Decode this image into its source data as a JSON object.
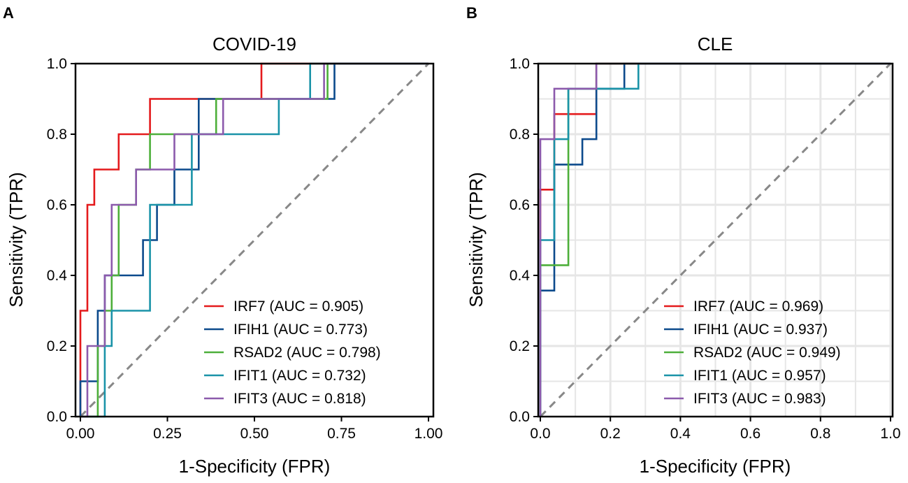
{
  "colors": {
    "IRF7": "#e41a1c",
    "IFIH1": "#0c4a8c",
    "RSAD2": "#4daf3a",
    "IFIT1": "#1a93a8",
    "IFIT3": "#8c5aac",
    "diagonal": "#888888",
    "grid": "#e6e6e6"
  },
  "chart_data": [
    {
      "panel": "A",
      "type": "line",
      "title": "COVID-19",
      "xlabel": "1-Specificity (FPR)",
      "ylabel": "Sensitivity (TPR)",
      "xlim": [
        0,
        1
      ],
      "ylim": [
        0,
        1
      ],
      "xticks": [
        0,
        0.25,
        0.5,
        0.75,
        1.0
      ],
      "xtick_labels": [
        "0.00",
        "0.25",
        "0.50",
        "0.75",
        "1.00"
      ],
      "yticks": [
        0,
        0.2,
        0.4,
        0.6,
        0.8,
        1.0
      ],
      "ytick_labels": [
        "0.0",
        "0.2",
        "0.4",
        "0.6",
        "0.8",
        "1.0"
      ],
      "grid": false,
      "legend_position": "bottom-right",
      "series": [
        {
          "name": "IRF7",
          "label": "IRF7 (AUC = 0.905)",
          "x": [
            0,
            0,
            0.02,
            0.02,
            0.04,
            0.04,
            0.06,
            0.06,
            0.11,
            0.11,
            0.2,
            0.2,
            0.52,
            0.52,
            1.0
          ],
          "y": [
            0,
            0.3,
            0.3,
            0.6,
            0.6,
            0.7,
            0.7,
            0.7,
            0.7,
            0.8,
            0.8,
            0.9,
            0.9,
            1.0,
            1.0
          ]
        },
        {
          "name": "IFIH1",
          "label": "IFIH1 (AUC = 0.773)",
          "x": [
            0,
            0,
            0.05,
            0.05,
            0.07,
            0.07,
            0.09,
            0.09,
            0.18,
            0.18,
            0.22,
            0.22,
            0.27,
            0.27,
            0.34,
            0.34,
            0.41,
            0.41,
            0.68,
            0.68,
            0.73,
            0.73,
            1.0
          ],
          "y": [
            0,
            0.1,
            0.1,
            0.3,
            0.3,
            0.4,
            0.4,
            0.4,
            0.4,
            0.5,
            0.5,
            0.6,
            0.6,
            0.7,
            0.7,
            0.9,
            0.9,
            0.9,
            0.9,
            0.9,
            0.9,
            1.0,
            1.0
          ]
        },
        {
          "name": "RSAD2",
          "label": "RSAD2 (AUC = 0.798)",
          "x": [
            0,
            0.05,
            0.05,
            0.07,
            0.07,
            0.09,
            0.09,
            0.11,
            0.11,
            0.16,
            0.16,
            0.2,
            0.2,
            0.39,
            0.39,
            0.71,
            0.71,
            1.0
          ],
          "y": [
            0,
            0,
            0.2,
            0.2,
            0.3,
            0.3,
            0.4,
            0.4,
            0.6,
            0.6,
            0.7,
            0.7,
            0.8,
            0.8,
            0.9,
            0.9,
            1.0,
            1.0
          ]
        },
        {
          "name": "IFIT1",
          "label": "IFIT1 (AUC = 0.732)",
          "x": [
            0,
            0.07,
            0.07,
            0.09,
            0.09,
            0.2,
            0.2,
            0.3,
            0.3,
            0.32,
            0.32,
            0.57,
            0.57,
            0.66,
            0.66,
            1.0
          ],
          "y": [
            0,
            0,
            0.2,
            0.2,
            0.3,
            0.3,
            0.6,
            0.6,
            0.6,
            0.6,
            0.8,
            0.8,
            0.9,
            0.9,
            1.0,
            1.0
          ]
        },
        {
          "name": "IFIT3",
          "label": "IFIT3 (AUC = 0.818)",
          "x": [
            0,
            0.02,
            0.02,
            0.07,
            0.07,
            0.09,
            0.09,
            0.16,
            0.16,
            0.27,
            0.27,
            0.41,
            0.41,
            0.7,
            0.7,
            1.0
          ],
          "y": [
            0,
            0,
            0.2,
            0.2,
            0.4,
            0.4,
            0.6,
            0.6,
            0.7,
            0.7,
            0.8,
            0.8,
            0.9,
            0.9,
            1.0,
            1.0
          ]
        }
      ]
    },
    {
      "panel": "B",
      "type": "line",
      "title": "CLE",
      "xlabel": "1-Specificity (FPR)",
      "ylabel": "Sensitivity (TPR)",
      "xlim": [
        0,
        1
      ],
      "ylim": [
        0,
        1
      ],
      "xticks": [
        0,
        0.2,
        0.4,
        0.6,
        0.8,
        1.0
      ],
      "xtick_labels": [
        "0.0",
        "0.2",
        "0.4",
        "0.6",
        "0.8",
        "1.0"
      ],
      "yticks": [
        0,
        0.2,
        0.4,
        0.6,
        0.8,
        1.0
      ],
      "ytick_labels": [
        "0.0",
        "0.2",
        "0.4",
        "0.6",
        "0.8",
        "1.0"
      ],
      "grid": true,
      "legend_position": "bottom-right",
      "series": [
        {
          "name": "IRF7",
          "label": "IRF7 (AUC = 0.969)",
          "x": [
            0,
            0,
            0.04,
            0.04,
            0.16,
            0.16,
            1.0
          ],
          "y": [
            0,
            0.643,
            0.643,
            0.857,
            0.857,
            1.0,
            1.0
          ]
        },
        {
          "name": "IFIH1",
          "label": "IFIH1 (AUC = 0.937)",
          "x": [
            0,
            0,
            0.04,
            0.04,
            0.12,
            0.12,
            0.16,
            0.16,
            0.24,
            0.24,
            1.0
          ],
          "y": [
            0,
            0.357,
            0.357,
            0.714,
            0.714,
            0.786,
            0.786,
            0.929,
            0.929,
            1.0,
            1.0
          ]
        },
        {
          "name": "RSAD2",
          "label": "RSAD2 (AUC = 0.949)",
          "x": [
            0,
            0,
            0.08,
            0.08,
            0.16,
            0.16,
            1.0
          ],
          "y": [
            0,
            0.429,
            0.429,
            0.929,
            0.929,
            1.0,
            1.0
          ]
        },
        {
          "name": "IFIT1",
          "label": "IFIT1 (AUC = 0.957)",
          "x": [
            0,
            0,
            0.04,
            0.04,
            0.08,
            0.08,
            0.28,
            0.28,
            1.0
          ],
          "y": [
            0,
            0.5,
            0.5,
            0.786,
            0.786,
            0.929,
            0.929,
            1.0,
            1.0
          ]
        },
        {
          "name": "IFIT3",
          "label": "IFIT3 (AUC = 0.983)",
          "x": [
            0,
            0,
            0.04,
            0.04,
            0.16,
            0.16,
            1.0
          ],
          "y": [
            0,
            0.786,
            0.786,
            0.929,
            0.929,
            1.0,
            1.0
          ]
        }
      ]
    }
  ]
}
